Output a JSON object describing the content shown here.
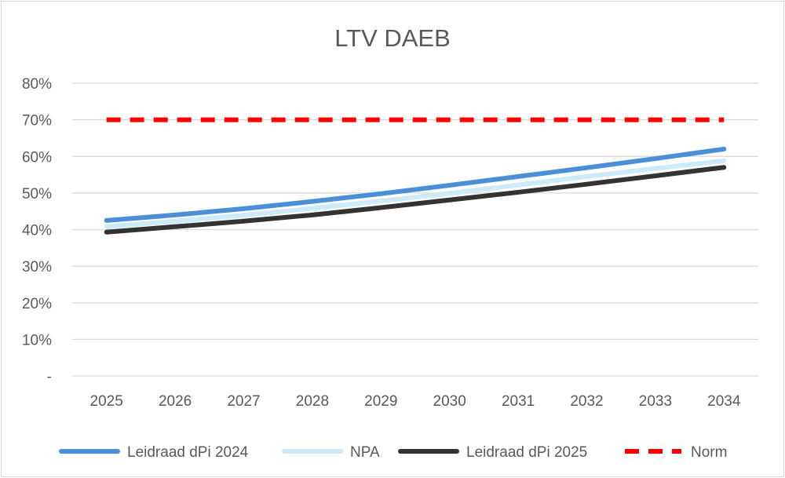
{
  "chart_data": {
    "type": "line",
    "title": "LTV DAEB",
    "xlabel": "",
    "ylabel": "",
    "categories": [
      "2025",
      "2026",
      "2027",
      "2028",
      "2029",
      "2030",
      "2031",
      "2032",
      "2033",
      "2034"
    ],
    "ylim": [
      0,
      80
    ],
    "yticks": [
      0,
      10,
      20,
      30,
      40,
      50,
      60,
      70,
      80
    ],
    "ytick_labels": [
      "-",
      "10%",
      "20%",
      "30%",
      "40%",
      "50%",
      "60%",
      "70%",
      "80%"
    ],
    "grid": true,
    "legend_position": "bottom",
    "series": [
      {
        "name": "Leidraad dPi 2024",
        "color": "#4a8fd8",
        "dash": false,
        "values": [
          42.5,
          44.0,
          45.7,
          47.7,
          49.8,
          52.1,
          54.5,
          56.9,
          59.4,
          62.0
        ]
      },
      {
        "name": "NPA",
        "color": "#cdeaf8",
        "dash": false,
        "values": [
          40.8,
          42.3,
          43.9,
          45.8,
          47.8,
          49.9,
          52.2,
          54.5,
          56.7,
          58.8
        ]
      },
      {
        "name": "Leidraad dPi 2025",
        "color": "#333333",
        "dash": false,
        "values": [
          39.3,
          40.8,
          42.3,
          44.0,
          46.0,
          48.1,
          50.2,
          52.4,
          54.7,
          57.0
        ]
      },
      {
        "name": "Norm",
        "color": "#ff0000",
        "dash": true,
        "values": [
          70,
          70,
          70,
          70,
          70,
          70,
          70,
          70,
          70,
          70
        ]
      }
    ]
  }
}
